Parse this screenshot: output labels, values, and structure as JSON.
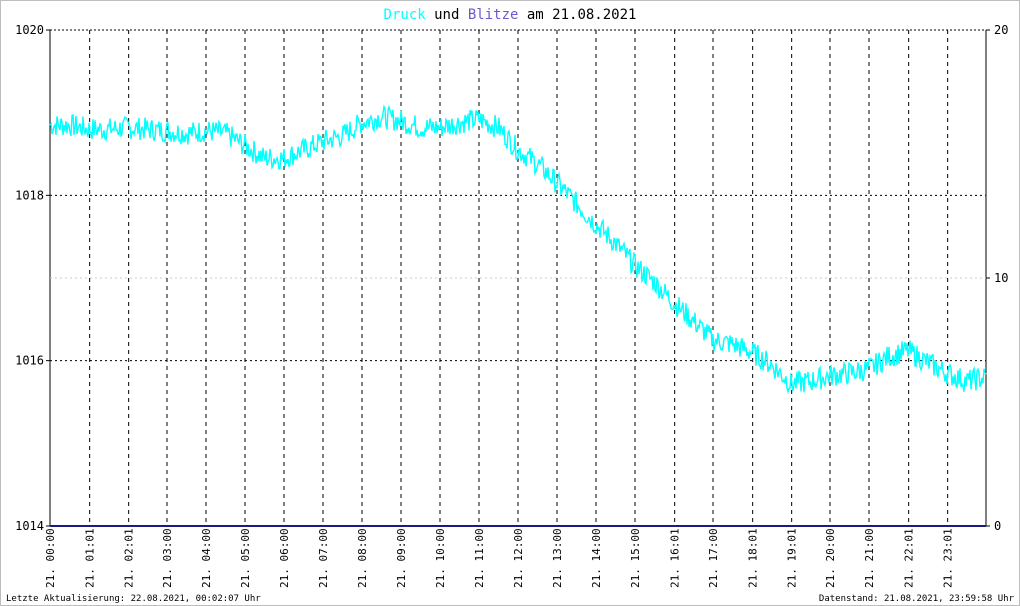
{
  "chart_data": {
    "type": "line",
    "title": {
      "druck": "Druck",
      "und": "und",
      "blitze": "Blitze",
      "am_date": "am 21.08.2021"
    },
    "left_axis": {
      "ylim": [
        1014,
        1020
      ],
      "ticks": [
        "1014",
        "1016",
        "1018",
        "1020"
      ],
      "tick_values": [
        1014,
        1016,
        1018,
        1020
      ]
    },
    "right_axis": {
      "ylim": [
        0,
        20
      ],
      "ticks": [
        "0",
        "10",
        "20"
      ],
      "tick_values": [
        0,
        10,
        20
      ]
    },
    "x_ticks": [
      "21. 00:00",
      "21. 01:01",
      "21. 02:01",
      "21. 03:00",
      "21. 04:00",
      "21. 05:00",
      "21. 06:00",
      "21. 07:00",
      "21. 08:00",
      "21. 09:00",
      "21. 10:00",
      "21. 11:00",
      "21. 12:00",
      "21. 13:00",
      "21. 14:00",
      "21. 15:00",
      "21. 16:01",
      "21. 17:00",
      "21. 18:01",
      "21. 19:01",
      "21. 20:00",
      "21. 21:00",
      "21. 22:01",
      "21. 23:01"
    ],
    "x_tick_hours": [
      0,
      1.017,
      2.017,
      3,
      4,
      5,
      6,
      7,
      8,
      9,
      10,
      11,
      12,
      13,
      14,
      15,
      16.017,
      17,
      18.017,
      19.017,
      20,
      21,
      22.017,
      23.017
    ],
    "x_range_hours": [
      0,
      24
    ],
    "grid": true,
    "series": [
      {
        "name": "Druck",
        "color": "#00ffff",
        "axis": "left",
        "x_hours": [
          0,
          0.5,
          1,
          1.5,
          2,
          2.5,
          3,
          3.5,
          4,
          4.5,
          5,
          5.5,
          6,
          6.5,
          7,
          7.5,
          8,
          8.5,
          9,
          9.5,
          10,
          10.5,
          11,
          11.5,
          12,
          12.5,
          13,
          13.5,
          14,
          14.5,
          15,
          15.5,
          16,
          16.5,
          17,
          17.5,
          18,
          18.5,
          19,
          19.5,
          20,
          20.5,
          21,
          21.5,
          22,
          22.5,
          23,
          23.5,
          24
        ],
        "values": [
          1018.85,
          1018.85,
          1018.8,
          1018.8,
          1018.82,
          1018.8,
          1018.78,
          1018.75,
          1018.78,
          1018.75,
          1018.6,
          1018.45,
          1018.45,
          1018.55,
          1018.65,
          1018.72,
          1018.88,
          1018.95,
          1018.9,
          1018.82,
          1018.82,
          1018.88,
          1018.92,
          1018.82,
          1018.55,
          1018.38,
          1018.15,
          1017.9,
          1017.65,
          1017.42,
          1017.15,
          1016.95,
          1016.7,
          1016.48,
          1016.25,
          1016.2,
          1016.1,
          1015.95,
          1015.72,
          1015.75,
          1015.82,
          1015.85,
          1015.9,
          1016.05,
          1016.12,
          1015.98,
          1015.85,
          1015.75,
          1015.8
        ]
      },
      {
        "name": "Blitze",
        "color": "#1a1a80",
        "axis": "right",
        "x_hours": [
          0,
          24
        ],
        "values": [
          0,
          0
        ]
      }
    ],
    "footer_left": "Letzte Aktualisierung: 22.08.2021, 00:02:07 Uhr",
    "footer_right": "Datenstand: 21.08.2021, 23:59:58 Uhr",
    "colors": {
      "title_druck": "#00ffff",
      "title_blitze": "#6a5acd",
      "title_text": "#000000"
    }
  }
}
